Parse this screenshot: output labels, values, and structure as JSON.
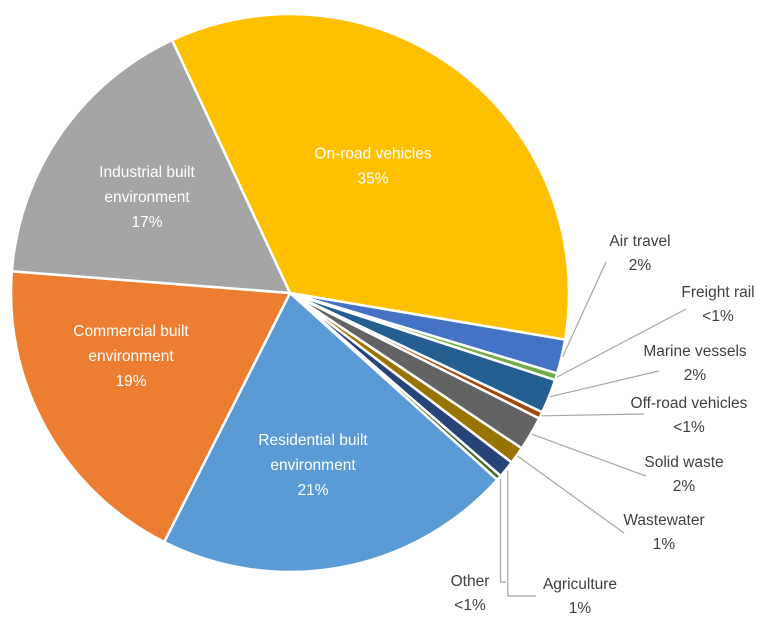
{
  "chart_data": {
    "type": "pie",
    "title": "",
    "legend": "none",
    "slices": [
      {
        "name": "On-road vehicles",
        "value": 35,
        "label": "35%",
        "color": "#FFC000",
        "label_pos": "inside"
      },
      {
        "name": "Air travel",
        "value": 2,
        "label": "2%",
        "color": "#4472C4",
        "label_pos": "outside"
      },
      {
        "name": "Freight rail",
        "value": 0.4,
        "label": "<1%",
        "color": "#70AD47",
        "label_pos": "outside"
      },
      {
        "name": "Marine vessels",
        "value": 2,
        "label": "2%",
        "color": "#255E91",
        "label_pos": "outside"
      },
      {
        "name": "Off-road vehicles",
        "value": 0.4,
        "label": "<1%",
        "color": "#9E480E",
        "label_pos": "outside"
      },
      {
        "name": "Solid waste",
        "value": 2,
        "label": "2%",
        "color": "#636363",
        "label_pos": "outside"
      },
      {
        "name": "Wastewater",
        "value": 1,
        "label": "1%",
        "color": "#997300",
        "label_pos": "outside"
      },
      {
        "name": "Agriculture",
        "value": 1,
        "label": "1%",
        "color": "#264478",
        "label_pos": "outside"
      },
      {
        "name": "Other",
        "value": 0.3,
        "label": "<1%",
        "color": "#43682B",
        "label_pos": "outside"
      },
      {
        "name": "Residential built environment",
        "value": 21,
        "label": "21%",
        "color": "#5B9BD5",
        "label_pos": "inside"
      },
      {
        "name": "Commercial built environment",
        "value": 19,
        "label": "19%",
        "color": "#ED7D31",
        "label_pos": "inside"
      },
      {
        "name": "Industrial built environment",
        "value": 17,
        "label": "17%",
        "color": "#A5A5A5",
        "label_pos": "inside"
      }
    ],
    "label_text": {
      "On-road vehicles": [
        "On-road vehicles"
      ],
      "Air travel": [
        "Air travel"
      ],
      "Freight rail": [
        "Freight rail"
      ],
      "Marine vessels": [
        "Marine vessels"
      ],
      "Off-road vehicles": [
        "Off-road vehicles"
      ],
      "Solid waste": [
        "Solid waste"
      ],
      "Wastewater": [
        "Wastewater"
      ],
      "Agriculture": [
        "Agriculture"
      ],
      "Other": [
        "Other"
      ],
      "Residential built environment": [
        "Residential built",
        "environment"
      ],
      "Commercial built environment": [
        "Commercial built",
        "environment"
      ],
      "Industrial built environment": [
        "Industrial built",
        "environment"
      ]
    }
  }
}
